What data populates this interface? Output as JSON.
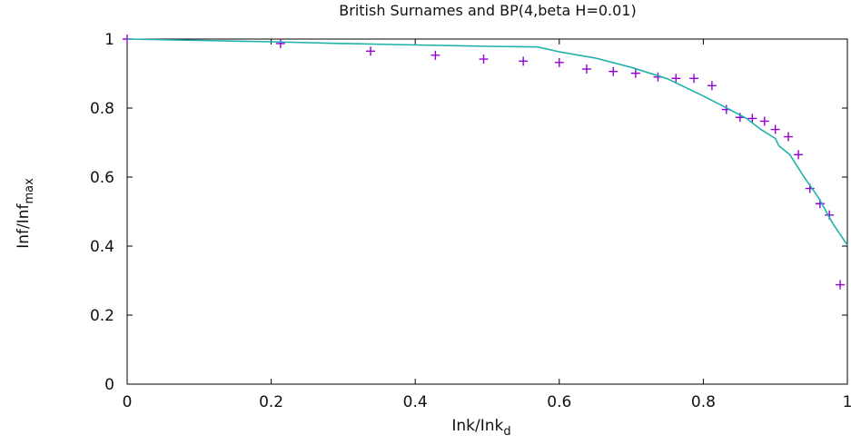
{
  "chart_data": {
    "type": "scatter",
    "title": "British Surnames and BP(4,beta H=0.01)",
    "xlabel": {
      "base": "Ink/Ink",
      "sub": "d"
    },
    "ylabel": {
      "base": "Inf/Inf",
      "sub": "max"
    },
    "xlim": [
      0,
      1
    ],
    "ylim": [
      0,
      1
    ],
    "x_ticks": [
      "0",
      "0.2",
      "0.4",
      "0.6",
      "0.8",
      "1"
    ],
    "y_ticks": [
      "0",
      "0.2",
      "0.4",
      "0.6",
      "0.8",
      "1"
    ],
    "grid": false,
    "series": [
      {
        "kind": "points",
        "marker": "+",
        "color": "#9400d3",
        "points": [
          [
            0.0,
            1.0
          ],
          [
            0.213,
            0.987
          ],
          [
            0.338,
            0.965
          ],
          [
            0.428,
            0.953
          ],
          [
            0.495,
            0.942
          ],
          [
            0.55,
            0.936
          ],
          [
            0.6,
            0.932
          ],
          [
            0.638,
            0.913
          ],
          [
            0.675,
            0.906
          ],
          [
            0.706,
            0.901
          ],
          [
            0.737,
            0.89
          ],
          [
            0.762,
            0.886
          ],
          [
            0.787,
            0.886
          ],
          [
            0.812,
            0.865
          ],
          [
            0.832,
            0.796
          ],
          [
            0.851,
            0.773
          ],
          [
            0.868,
            0.77
          ],
          [
            0.885,
            0.762
          ],
          [
            0.9,
            0.738
          ],
          [
            0.918,
            0.717
          ],
          [
            0.932,
            0.665
          ],
          [
            0.948,
            0.567
          ],
          [
            0.962,
            0.523
          ],
          [
            0.975,
            0.49
          ],
          [
            0.99,
            0.288
          ]
        ]
      },
      {
        "kind": "line",
        "color": "#20b2aa",
        "points": [
          [
            0.0,
            1.0
          ],
          [
            0.1,
            0.996
          ],
          [
            0.2,
            0.992
          ],
          [
            0.3,
            0.987
          ],
          [
            0.4,
            0.983
          ],
          [
            0.5,
            0.979
          ],
          [
            0.57,
            0.977
          ],
          [
            0.6,
            0.963
          ],
          [
            0.65,
            0.945
          ],
          [
            0.7,
            0.918
          ],
          [
            0.75,
            0.885
          ],
          [
            0.8,
            0.835
          ],
          [
            0.83,
            0.803
          ],
          [
            0.86,
            0.77
          ],
          [
            0.88,
            0.738
          ],
          [
            0.9,
            0.712
          ],
          [
            0.905,
            0.69
          ],
          [
            0.92,
            0.665
          ],
          [
            0.94,
            0.6
          ],
          [
            0.96,
            0.54
          ],
          [
            0.98,
            0.465
          ],
          [
            1.0,
            0.403
          ]
        ]
      }
    ]
  }
}
